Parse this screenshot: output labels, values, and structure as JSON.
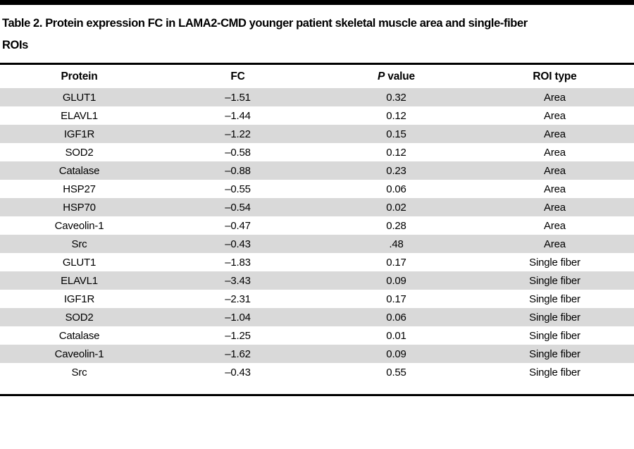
{
  "title": {
    "line1": "Table 2. Protein expression FC in LAMA2-CMD younger patient skeletal muscle area and single-fiber",
    "line2": "ROIs"
  },
  "table": {
    "columns": {
      "protein": "Protein",
      "fc": "FC",
      "p_italic": "P",
      "p_rest": " value",
      "roi": "ROI type"
    },
    "rows": [
      {
        "protein": "GLUT1",
        "fc": "–1.51",
        "p": "0.32",
        "roi": "Area"
      },
      {
        "protein": "ELAVL1",
        "fc": "–1.44",
        "p": "0.12",
        "roi": "Area"
      },
      {
        "protein": "IGF1R",
        "fc": "–1.22",
        "p": "0.15",
        "roi": "Area"
      },
      {
        "protein": "SOD2",
        "fc": "–0.58",
        "p": "0.12",
        "roi": "Area"
      },
      {
        "protein": "Catalase",
        "fc": "–0.88",
        "p": "0.23",
        "roi": "Area"
      },
      {
        "protein": "HSP27",
        "fc": "–0.55",
        "p": "0.06",
        "roi": "Area"
      },
      {
        "protein": "HSP70",
        "fc": "–0.54",
        "p": "0.02",
        "roi": "Area"
      },
      {
        "protein": "Caveolin-1",
        "fc": "–0.47",
        "p": "0.28",
        "roi": "Area"
      },
      {
        "protein": "Src",
        "fc": "–0.43",
        "p": ".48",
        "roi": "Area"
      },
      {
        "protein": "GLUT1",
        "fc": "–1.83",
        "p": "0.17",
        "roi": "Single fiber"
      },
      {
        "protein": "ELAVL1",
        "fc": "–3.43",
        "p": "0.09",
        "roi": "Single fiber"
      },
      {
        "protein": "IGF1R",
        "fc": "–2.31",
        "p": "0.17",
        "roi": "Single fiber"
      },
      {
        "protein": "SOD2",
        "fc": "–1.04",
        "p": "0.06",
        "roi": "Single fiber"
      },
      {
        "protein": "Catalase",
        "fc": "–1.25",
        "p": "0.01",
        "roi": "Single fiber"
      },
      {
        "protein": "Caveolin-1",
        "fc": "–1.62",
        "p": "0.09",
        "roi": "Single fiber"
      },
      {
        "protein": "Src",
        "fc": "–0.43",
        "p": "0.55",
        "roi": "Single fiber"
      }
    ]
  },
  "colors": {
    "stripe": "#d9d9d9",
    "rule": "#000000",
    "text": "#000000",
    "background": "#ffffff"
  }
}
